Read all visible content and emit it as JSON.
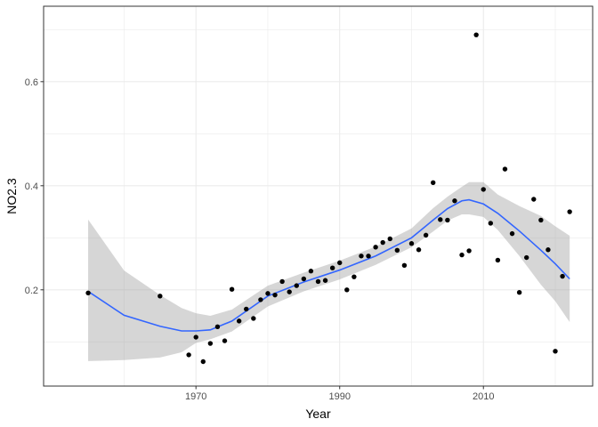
{
  "chart_data": {
    "type": "scatter",
    "xlabel": "Year",
    "ylabel": "NO2.3",
    "xlim": [
      1948.8,
      2025.2
    ],
    "ylim": [
      0.015,
      0.745
    ],
    "x_ticks": [
      1970,
      1990,
      2010
    ],
    "y_ticks": [
      0.2,
      0.4,
      0.6
    ],
    "x_tick_labels": [
      "1970",
      "1990",
      "2010"
    ],
    "y_tick_labels": [
      "0.2",
      "0.4",
      "0.6"
    ],
    "grid": true,
    "points": [
      {
        "x": 1955,
        "y": 0.194
      },
      {
        "x": 1965,
        "y": 0.188
      },
      {
        "x": 1969,
        "y": 0.075
      },
      {
        "x": 1970,
        "y": 0.109
      },
      {
        "x": 1971,
        "y": 0.062
      },
      {
        "x": 1972,
        "y": 0.097
      },
      {
        "x": 1973,
        "y": 0.129
      },
      {
        "x": 1974,
        "y": 0.102
      },
      {
        "x": 1975,
        "y": 0.201
      },
      {
        "x": 1976,
        "y": 0.14
      },
      {
        "x": 1977,
        "y": 0.163
      },
      {
        "x": 1978,
        "y": 0.145
      },
      {
        "x": 1979,
        "y": 0.181
      },
      {
        "x": 1980,
        "y": 0.193
      },
      {
        "x": 1981,
        "y": 0.19
      },
      {
        "x": 1982,
        "y": 0.216
      },
      {
        "x": 1983,
        "y": 0.196
      },
      {
        "x": 1984,
        "y": 0.208
      },
      {
        "x": 1985,
        "y": 0.221
      },
      {
        "x": 1986,
        "y": 0.236
      },
      {
        "x": 1987,
        "y": 0.216
      },
      {
        "x": 1988,
        "y": 0.218
      },
      {
        "x": 1989,
        "y": 0.242
      },
      {
        "x": 1990,
        "y": 0.252
      },
      {
        "x": 1991,
        "y": 0.2
      },
      {
        "x": 1992,
        "y": 0.225
      },
      {
        "x": 1993,
        "y": 0.265
      },
      {
        "x": 1994,
        "y": 0.265
      },
      {
        "x": 1995,
        "y": 0.282
      },
      {
        "x": 1996,
        "y": 0.291
      },
      {
        "x": 1997,
        "y": 0.298
      },
      {
        "x": 1998,
        "y": 0.276
      },
      {
        "x": 1999,
        "y": 0.247
      },
      {
        "x": 2000,
        "y": 0.289
      },
      {
        "x": 2001,
        "y": 0.277
      },
      {
        "x": 2002,
        "y": 0.305
      },
      {
        "x": 2003,
        "y": 0.406
      },
      {
        "x": 2004,
        "y": 0.335
      },
      {
        "x": 2005,
        "y": 0.334
      },
      {
        "x": 2006,
        "y": 0.371
      },
      {
        "x": 2007,
        "y": 0.267
      },
      {
        "x": 2008,
        "y": 0.275
      },
      {
        "x": 2009,
        "y": 0.69
      },
      {
        "x": 2010,
        "y": 0.393
      },
      {
        "x": 2011,
        "y": 0.328
      },
      {
        "x": 2012,
        "y": 0.257
      },
      {
        "x": 2013,
        "y": 0.432
      },
      {
        "x": 2014,
        "y": 0.308
      },
      {
        "x": 2015,
        "y": 0.195
      },
      {
        "x": 2016,
        "y": 0.262
      },
      {
        "x": 2017,
        "y": 0.374
      },
      {
        "x": 2018,
        "y": 0.334
      },
      {
        "x": 2019,
        "y": 0.277
      },
      {
        "x": 2020,
        "y": 0.082
      },
      {
        "x": 2021,
        "y": 0.226
      },
      {
        "x": 2022,
        "y": 0.35
      }
    ],
    "smooth": {
      "x": [
        1955,
        1960,
        1965,
        1968,
        1970,
        1972,
        1975,
        1980,
        1985,
        1990,
        1995,
        2000,
        2003,
        2005,
        2007,
        2008,
        2010,
        2012,
        2015,
        2018,
        2020,
        2022
      ],
      "y": [
        0.197,
        0.151,
        0.13,
        0.121,
        0.121,
        0.123,
        0.14,
        0.188,
        0.215,
        0.238,
        0.265,
        0.3,
        0.334,
        0.356,
        0.371,
        0.373,
        0.365,
        0.347,
        0.313,
        0.276,
        0.25,
        0.221
      ],
      "lower": [
        0.063,
        0.065,
        0.07,
        0.08,
        0.098,
        0.105,
        0.12,
        0.168,
        0.197,
        0.22,
        0.248,
        0.282,
        0.312,
        0.333,
        0.345,
        0.345,
        0.34,
        0.315,
        0.265,
        0.21,
        0.178,
        0.138
      ],
      "upper": [
        0.335,
        0.237,
        0.19,
        0.165,
        0.155,
        0.15,
        0.162,
        0.208,
        0.233,
        0.256,
        0.283,
        0.318,
        0.357,
        0.379,
        0.398,
        0.407,
        0.407,
        0.383,
        0.361,
        0.342,
        0.322,
        0.304
      ]
    },
    "colors": {
      "point": "#000000",
      "line": "#3366FF",
      "ribbon": "#999999",
      "grid": "#EBEBEB",
      "panel_border": "#333333"
    }
  }
}
